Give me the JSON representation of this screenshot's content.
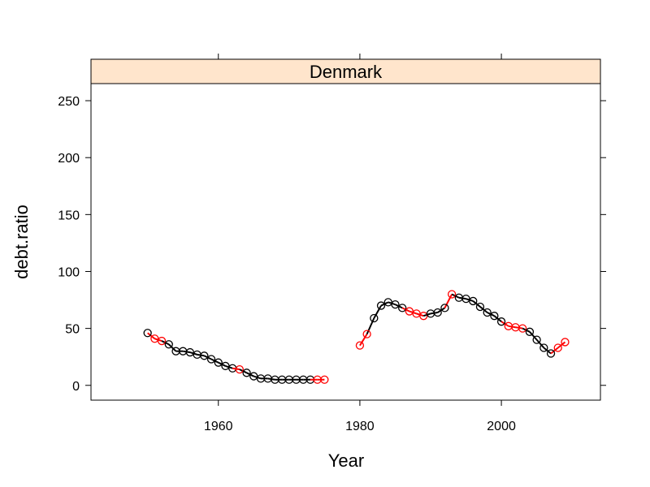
{
  "chart_data": {
    "type": "scatter",
    "panel_label": "Denmark",
    "xlabel": "Year",
    "ylabel": "debt.ratio",
    "xlim": [
      1942,
      2014
    ],
    "ylim": [
      -13,
      265
    ],
    "x_ticks": [
      1960,
      1980,
      2000
    ],
    "y_ticks": [
      0,
      50,
      100,
      150,
      200,
      250
    ],
    "colors": {
      "default": "#000000",
      "highlight": "#ff0000",
      "strip": "#ffe5cc"
    },
    "points": [
      {
        "x": 1950,
        "y": 46,
        "color": "default"
      },
      {
        "x": 1951,
        "y": 41,
        "color": "highlight"
      },
      {
        "x": 1952,
        "y": 39,
        "color": "highlight"
      },
      {
        "x": 1953,
        "y": 36,
        "color": "default"
      },
      {
        "x": 1954,
        "y": 30,
        "color": "default"
      },
      {
        "x": 1955,
        "y": 30,
        "color": "default"
      },
      {
        "x": 1956,
        "y": 29,
        "color": "default"
      },
      {
        "x": 1957,
        "y": 27,
        "color": "default"
      },
      {
        "x": 1958,
        "y": 26,
        "color": "default"
      },
      {
        "x": 1959,
        "y": 23,
        "color": "default"
      },
      {
        "x": 1960,
        "y": 20,
        "color": "default"
      },
      {
        "x": 1961,
        "y": 17,
        "color": "default"
      },
      {
        "x": 1962,
        "y": 15,
        "color": "default"
      },
      {
        "x": 1963,
        "y": 14,
        "color": "highlight"
      },
      {
        "x": 1964,
        "y": 11,
        "color": "default"
      },
      {
        "x": 1965,
        "y": 8,
        "color": "default"
      },
      {
        "x": 1966,
        "y": 6,
        "color": "default"
      },
      {
        "x": 1967,
        "y": 6,
        "color": "default"
      },
      {
        "x": 1968,
        "y": 5,
        "color": "default"
      },
      {
        "x": 1969,
        "y": 5,
        "color": "default"
      },
      {
        "x": 1970,
        "y": 5,
        "color": "default"
      },
      {
        "x": 1971,
        "y": 5,
        "color": "default"
      },
      {
        "x": 1972,
        "y": 5,
        "color": "default"
      },
      {
        "x": 1973,
        "y": 5,
        "color": "default"
      },
      {
        "x": 1974,
        "y": 5,
        "color": "highlight"
      },
      {
        "x": 1975,
        "y": 5,
        "color": "highlight"
      },
      {
        "x": 1980,
        "y": 35,
        "color": "highlight"
      },
      {
        "x": 1981,
        "y": 45,
        "color": "highlight"
      },
      {
        "x": 1982,
        "y": 59,
        "color": "default"
      },
      {
        "x": 1983,
        "y": 70,
        "color": "default"
      },
      {
        "x": 1984,
        "y": 73,
        "color": "default"
      },
      {
        "x": 1985,
        "y": 71,
        "color": "default"
      },
      {
        "x": 1986,
        "y": 68,
        "color": "default"
      },
      {
        "x": 1987,
        "y": 65,
        "color": "highlight"
      },
      {
        "x": 1988,
        "y": 63,
        "color": "highlight"
      },
      {
        "x": 1989,
        "y": 61,
        "color": "highlight"
      },
      {
        "x": 1990,
        "y": 63,
        "color": "default"
      },
      {
        "x": 1991,
        "y": 64,
        "color": "default"
      },
      {
        "x": 1992,
        "y": 68,
        "color": "default"
      },
      {
        "x": 1993,
        "y": 80,
        "color": "highlight"
      },
      {
        "x": 1994,
        "y": 77,
        "color": "default"
      },
      {
        "x": 1995,
        "y": 76,
        "color": "default"
      },
      {
        "x": 1996,
        "y": 74,
        "color": "default"
      },
      {
        "x": 1997,
        "y": 69,
        "color": "default"
      },
      {
        "x": 1998,
        "y": 64,
        "color": "default"
      },
      {
        "x": 1999,
        "y": 61,
        "color": "default"
      },
      {
        "x": 2000,
        "y": 56,
        "color": "default"
      },
      {
        "x": 2001,
        "y": 52,
        "color": "highlight"
      },
      {
        "x": 2002,
        "y": 51,
        "color": "highlight"
      },
      {
        "x": 2003,
        "y": 50,
        "color": "highlight"
      },
      {
        "x": 2004,
        "y": 47,
        "color": "default"
      },
      {
        "x": 2005,
        "y": 40,
        "color": "default"
      },
      {
        "x": 2006,
        "y": 33,
        "color": "default"
      },
      {
        "x": 2007,
        "y": 28,
        "color": "default"
      },
      {
        "x": 2008,
        "y": 33,
        "color": "highlight"
      },
      {
        "x": 2009,
        "y": 38,
        "color": "highlight"
      }
    ]
  }
}
